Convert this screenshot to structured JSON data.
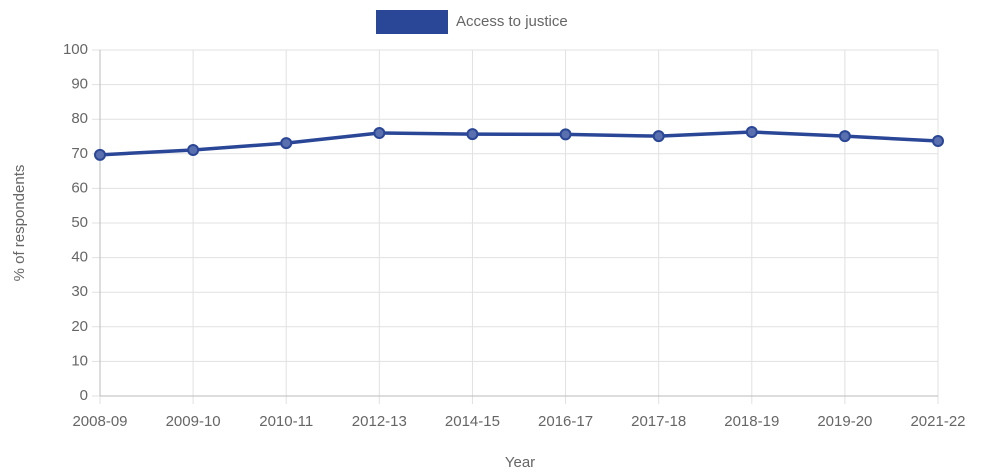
{
  "chart_data": {
    "type": "line",
    "categories": [
      "2008-09",
      "2009-10",
      "2010-11",
      "2012-13",
      "2014-15",
      "2016-17",
      "2017-18",
      "2018-19",
      "2019-20",
      "2021-22"
    ],
    "series": [
      {
        "name": "Access to justice",
        "color": "#2a4696",
        "values": [
          69.7,
          71.1,
          73.1,
          76.0,
          75.7,
          75.6,
          75.1,
          76.3,
          75.1,
          73.7
        ]
      }
    ],
    "x_label": "Year",
    "y_label": "% of respondents",
    "ylim": [
      0,
      100
    ],
    "yticks": [
      0,
      10,
      20,
      30,
      40,
      50,
      60,
      70,
      80,
      90,
      100
    ],
    "grid": true,
    "legend": "top"
  }
}
